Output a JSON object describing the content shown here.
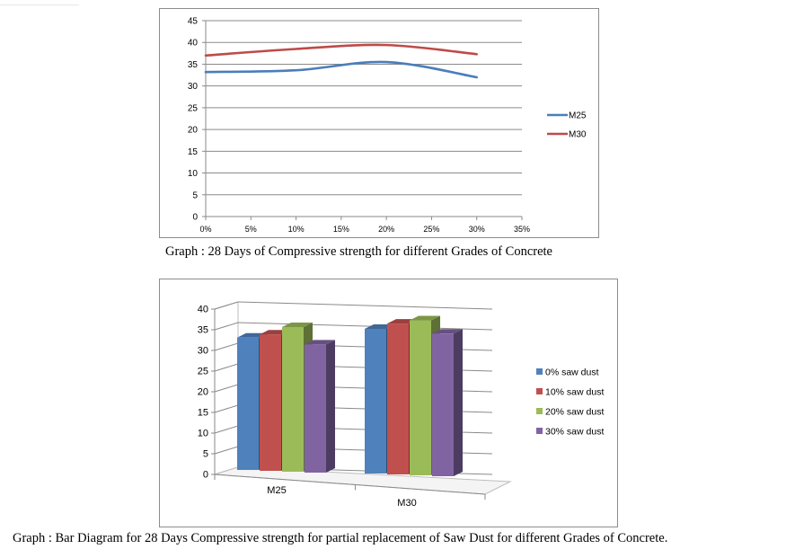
{
  "chart_data": [
    {
      "type": "line",
      "x": [
        "0%",
        "5%",
        "10%",
        "15%",
        "20%",
        "25%",
        "30%",
        "35%"
      ],
      "x_values": [
        0,
        5,
        10,
        15,
        20,
        25,
        30,
        35
      ],
      "ylim": [
        0,
        45
      ],
      "yticks": [
        0,
        5,
        10,
        15,
        20,
        25,
        30,
        35,
        40,
        45
      ],
      "grid": true,
      "legend_position": "right",
      "series": [
        {
          "name": "M25",
          "color": "#4a7ebb",
          "x": [
            0,
            10,
            20,
            30
          ],
          "values": [
            33.2,
            33.6,
            35.5,
            32.0
          ]
        },
        {
          "name": "M30",
          "color": "#be4b48",
          "x": [
            0,
            10,
            20,
            30
          ],
          "values": [
            37.0,
            38.5,
            39.4,
            37.3
          ]
        }
      ],
      "caption": "Graph :  28 Days of Compressive strength for different Grades of Concrete"
    },
    {
      "type": "bar",
      "style": "3d-clustered",
      "categories": [
        "M25",
        "M30"
      ],
      "ylim": [
        0,
        40
      ],
      "yticks": [
        0,
        5,
        10,
        15,
        20,
        25,
        30,
        35,
        40
      ],
      "grid": true,
      "legend_position": "right",
      "series": [
        {
          "name": "0% saw dust",
          "color": "#4f81bd",
          "values": [
            32.0,
            35.0
          ]
        },
        {
          "name": "10% saw dust",
          "color": "#c0504d",
          "values": [
            33.0,
            36.5
          ]
        },
        {
          "name": "20% saw dust",
          "color": "#9bbb59",
          "values": [
            35.0,
            37.5
          ]
        },
        {
          "name": "30% saw dust",
          "color": "#8064a2",
          "values": [
            31.0,
            34.5
          ]
        }
      ],
      "caption": "Graph : Bar Diagram for 28 Days Compressive strength for partial replacement of Saw Dust for different Grades of Concrete."
    }
  ]
}
